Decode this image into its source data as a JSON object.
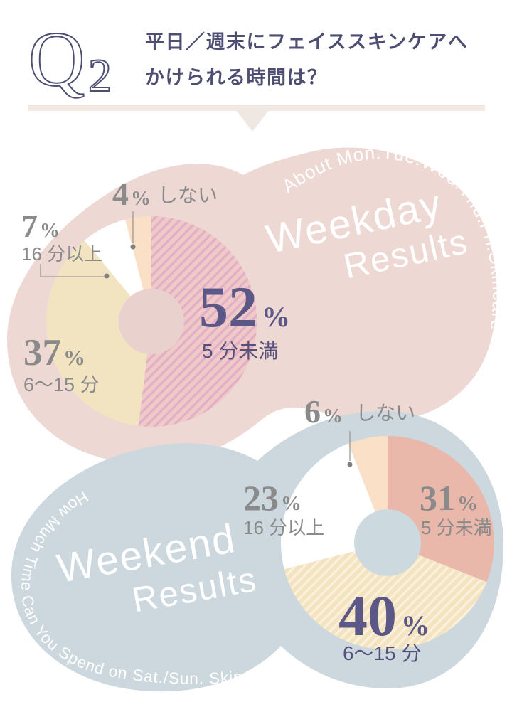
{
  "page": {
    "background": "#ffffff"
  },
  "header": {
    "q_label": "Q",
    "q_number": "2",
    "title_line1": "平日／週末にフェイススキンケアへ",
    "title_line2": "かけられる時間は？",
    "accent_color": "#4e4e72",
    "divider_color": "#efe7e2"
  },
  "chart_data": [
    {
      "type": "pie",
      "donut": true,
      "id": "weekday",
      "heading_line1": "Weekday",
      "heading_line2": "Results",
      "tagline": "About Mon.Tue.Wed.Thu.Fri.Skincare",
      "blob_color": "#eed8d4",
      "hole_color": "#e9d1cd",
      "label_text_color": "#8a8a8a",
      "highlight_text_color": "#5b5786",
      "start_angle": "top",
      "direction": "clockwise",
      "slices": [
        {
          "label": "5 分未満",
          "value": 52,
          "unit": "%",
          "color": "#f0cac6",
          "stripe_color": "#e2afc8",
          "highlighted": true
        },
        {
          "label": "6〜15 分",
          "value": 37,
          "unit": "%",
          "color": "#f2e4c1",
          "highlighted": false
        },
        {
          "label": "16 分以上",
          "value": 7,
          "unit": "%",
          "color": "#ffffff",
          "highlighted": false
        },
        {
          "label": "しない",
          "value": 4,
          "unit": "%",
          "color": "#f9e0c6",
          "highlighted": false
        }
      ]
    },
    {
      "type": "pie",
      "donut": true,
      "id": "weekend",
      "heading_line1": "Weekend",
      "heading_line2": "Results",
      "tagline": "How Much Time Can You Spend on Sat./Sun. Skincare?",
      "blob_color": "#ccd8de",
      "hole_color": "#ccd9df",
      "label_text_color": "#8a8a8a",
      "highlight_text_color": "#5b5786",
      "start_angle": "top",
      "direction": "clockwise",
      "slices": [
        {
          "label": "5 分未満",
          "value": 31,
          "unit": "%",
          "color": "#eab7ab",
          "highlighted": false
        },
        {
          "label": "6〜15 分",
          "value": 40,
          "unit": "%",
          "color": "#f4e3bf",
          "stripe_color": "#faf0dc",
          "highlighted": true
        },
        {
          "label": "16 分以上",
          "value": 23,
          "unit": "%",
          "color": "#ffffff",
          "highlighted": false
        },
        {
          "label": "しない",
          "value": 6,
          "unit": "%",
          "color": "#f9e0c6",
          "highlighted": false
        }
      ]
    }
  ]
}
